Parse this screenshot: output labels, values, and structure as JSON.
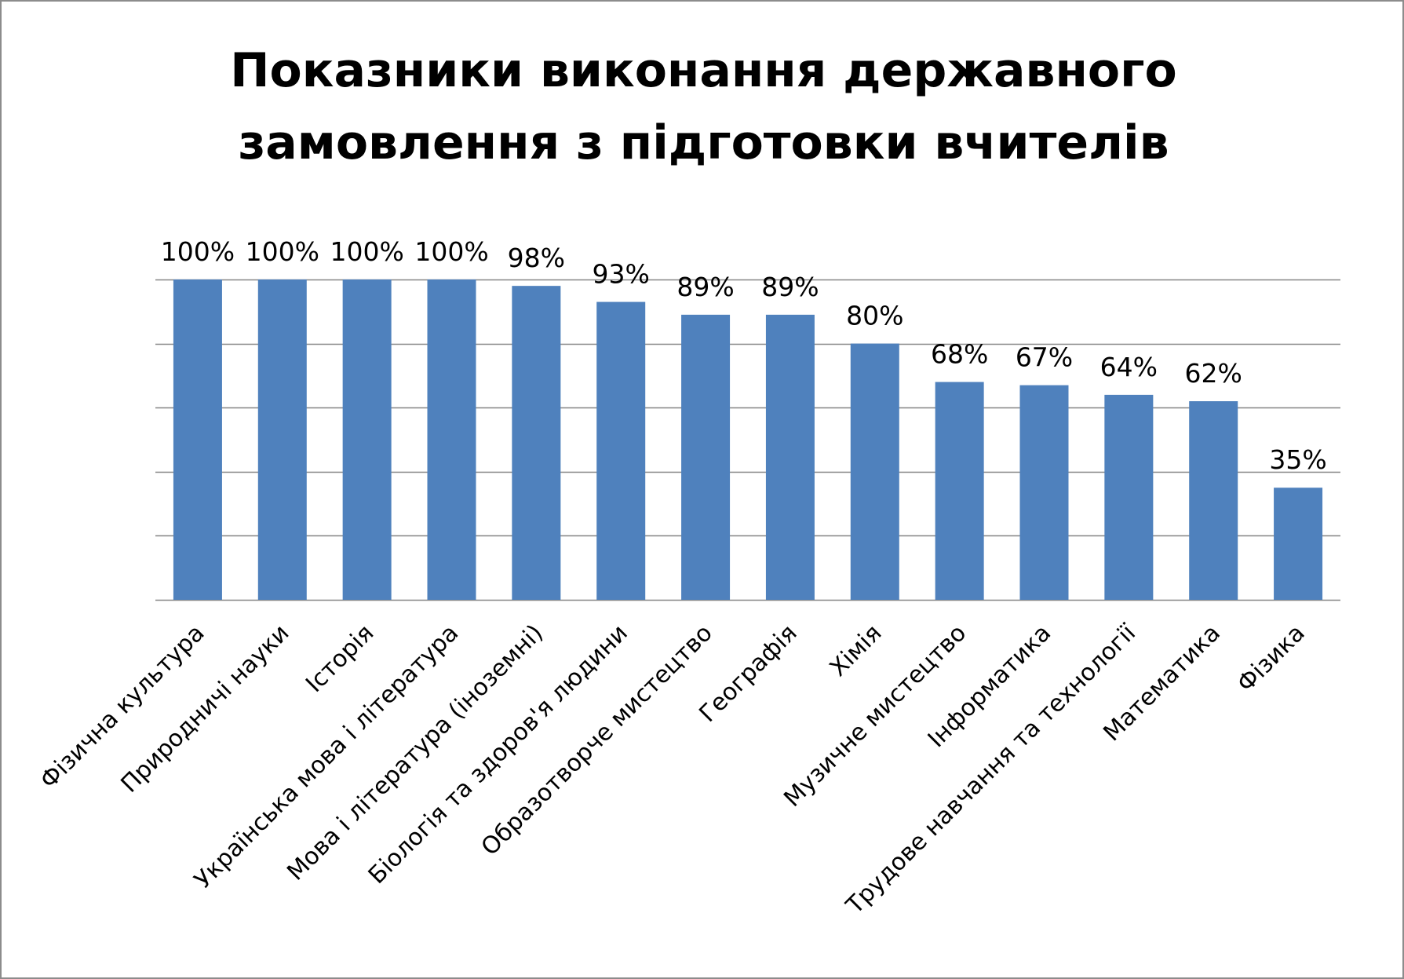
{
  "title": {
    "line1": "Показники виконання державного",
    "line2": "замовлення з підготовки вчителів"
  },
  "colors": {
    "bar": "#4f81bd",
    "gridline": "#868686",
    "text": "#000000"
  },
  "chart_data": {
    "type": "bar",
    "title": "Показники виконання державного замовлення з підготовки вчителів",
    "categories": [
      "Фізична культура",
      "Природничі науки",
      "Історія",
      "Українська мова і література",
      "Мова і література (іноземні)",
      "Біологія та здоров'я людини",
      "Образотворче мистецтво",
      "Географія",
      "Хімія",
      "Музичне мистецтво",
      "Інформатика",
      "Трудове навчання та технології",
      "Математика",
      "Фізика"
    ],
    "values": [
      100,
      100,
      100,
      100,
      98,
      93,
      89,
      89,
      80,
      68,
      67,
      64,
      62,
      35
    ],
    "data_labels": [
      "100%",
      "100%",
      "100%",
      "100%",
      "98%",
      "93%",
      "89%",
      "89%",
      "80%",
      "68%",
      "67%",
      "64%",
      "62%",
      "35%"
    ],
    "xlabel": "",
    "ylabel": "",
    "ylim": [
      0,
      100
    ],
    "y_gridlines": [
      0,
      20,
      40,
      60,
      80,
      100
    ],
    "y_tick_labels_shown": false,
    "grid": true,
    "legend": "none"
  }
}
